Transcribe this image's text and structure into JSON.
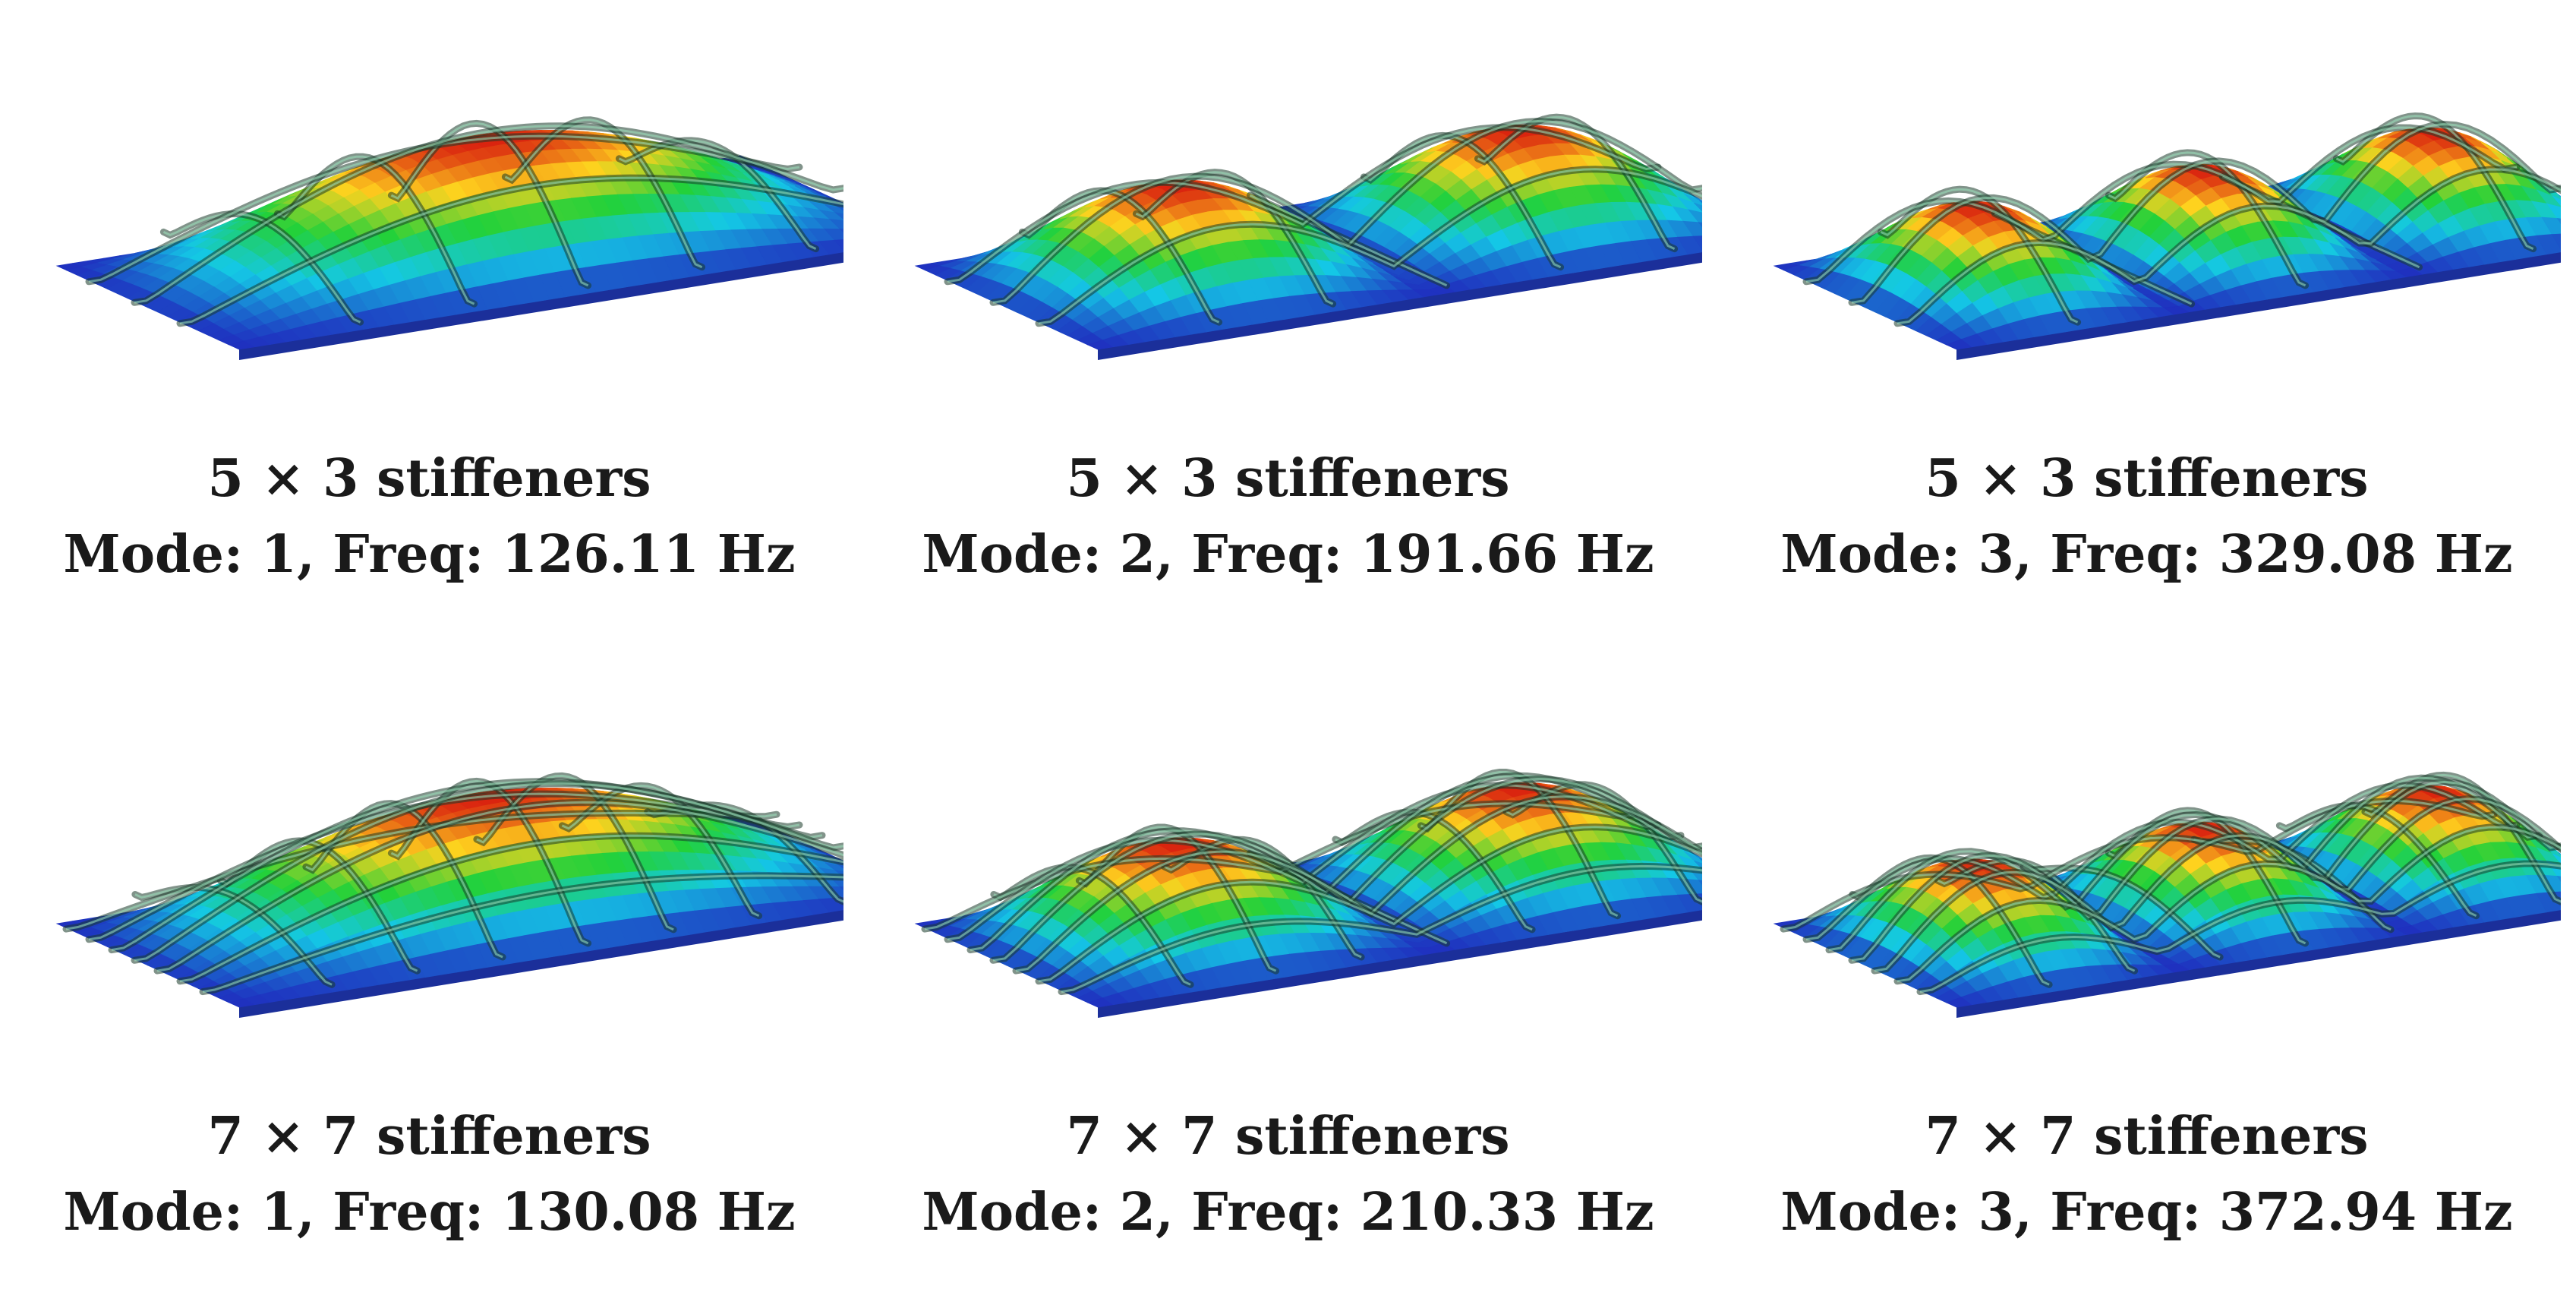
{
  "colors": {
    "min": "#1f2fbf",
    "low": "#14c8e6",
    "mid": "#22d13a",
    "high": "#ffd21e",
    "max": "#d9200f",
    "stiffener_edge": "#1a3a2a"
  },
  "panels": [
    {
      "stiffeners": "5 × 3 stiffeners",
      "mode_text": "Mode: 1, Freq: 126.11 Hz",
      "mode": 1,
      "freq_hz": 126.11,
      "grid": [
        5,
        3
      ]
    },
    {
      "stiffeners": "5 × 3 stiffeners",
      "mode_text": "Mode: 2, Freq: 191.66 Hz",
      "mode": 2,
      "freq_hz": 191.66,
      "grid": [
        5,
        3
      ]
    },
    {
      "stiffeners": "5 × 3 stiffeners",
      "mode_text": "Mode: 3, Freq: 329.08 Hz",
      "mode": 3,
      "freq_hz": 329.08,
      "grid": [
        5,
        3
      ]
    },
    {
      "stiffeners": "7 × 7 stiffeners",
      "mode_text": "Mode: 1, Freq: 130.08 Hz",
      "mode": 1,
      "freq_hz": 130.08,
      "grid": [
        7,
        7
      ]
    },
    {
      "stiffeners": "7 × 7 stiffeners",
      "mode_text": "Mode: 2, Freq: 210.33 Hz",
      "mode": 2,
      "freq_hz": 210.33,
      "grid": [
        7,
        7
      ]
    },
    {
      "stiffeners": "7 × 7 stiffeners",
      "mode_text": "Mode: 3, Freq: 372.94 Hz",
      "mode": 3,
      "freq_hz": 372.94,
      "grid": [
        7,
        7
      ]
    }
  ]
}
